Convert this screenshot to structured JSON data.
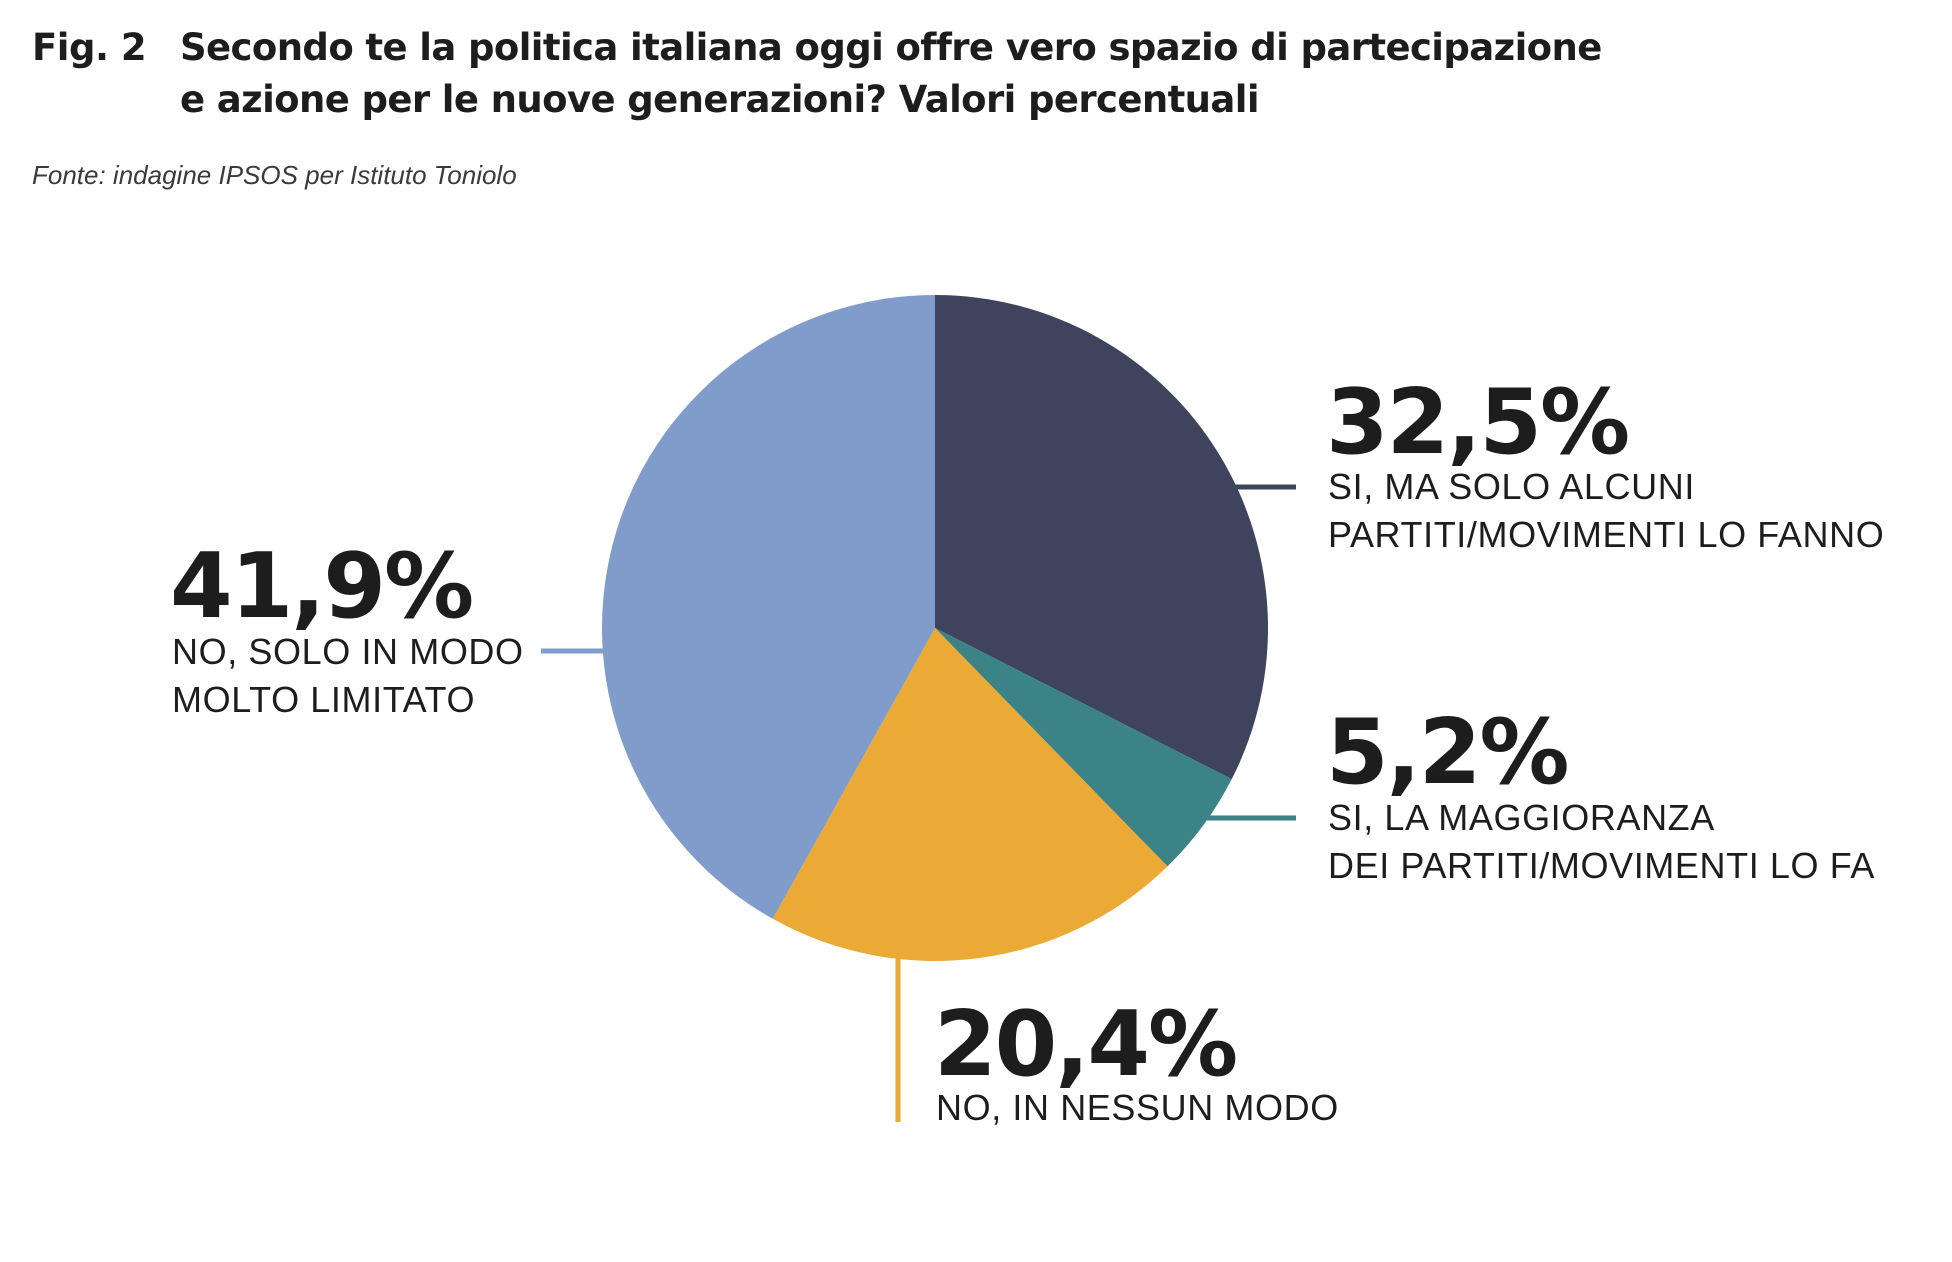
{
  "figure": {
    "label": "Fig. 2",
    "title_lines": [
      "Secondo te la politica italiana oggi offre vero spazio di partecipazione",
      "e azione per le nuove generazioni? Valori percentuali"
    ],
    "source": "Fonte: indagine IPSOS per Istituto Toniolo"
  },
  "chart_data": {
    "type": "pie",
    "start_angle": "12 o'clock",
    "direction": "clockwise",
    "unit": "%",
    "slices": [
      {
        "value": 32.5,
        "value_label": "32,5%",
        "label_lines": [
          "SI, MA SOLO ALCUNI",
          "PARTITI/MOVIMENTI LO FANNO"
        ],
        "color": "#3e445e"
      },
      {
        "value": 5.2,
        "value_label": "5,2%",
        "label_lines": [
          "SI, LA MAGGIORANZA",
          "DEI PARTITI/MOVIMENTI LO FA"
        ],
        "color": "#3b8386"
      },
      {
        "value": 20.4,
        "value_label": "20,4%",
        "label_lines": [
          "NO, IN NESSUN MODO"
        ],
        "color": "#eba935"
      },
      {
        "value": 41.9,
        "value_label": "41,9%",
        "label_lines": [
          "NO, SOLO IN MODO",
          "MOLTO LIMITATO"
        ],
        "color": "#7f9cca"
      }
    ]
  }
}
